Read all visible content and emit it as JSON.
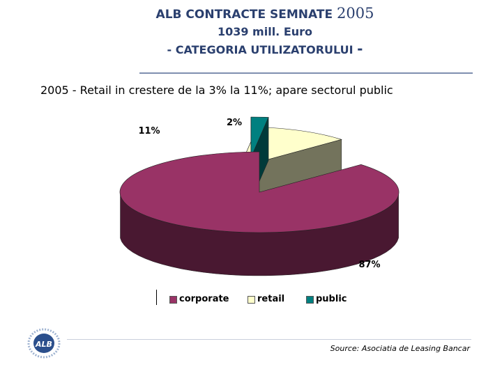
{
  "header": {
    "title_main": "ALB CONTRACTE SEMNATE",
    "title_year": "2005",
    "line2": "1039 mill. Euro",
    "line3": "- CATEGORIA UTILIZATORULUI",
    "line3_dash": "-"
  },
  "subtitle": "2005  - Retail in crestere de la 3% la 11%; apare sectorul public",
  "chart_data": {
    "type": "pie",
    "title": "",
    "categories": [
      "corporate",
      "retail",
      "public"
    ],
    "values": [
      87,
      11,
      2
    ],
    "labels": [
      "87%",
      "11%",
      "2%"
    ],
    "colors": {
      "corporate": "#993366",
      "retail": "#ffffcc",
      "public": "#008080"
    },
    "legend_position": "bottom"
  },
  "legend": {
    "items": [
      {
        "label": "corporate",
        "color": "#993366"
      },
      {
        "label": "retail",
        "color": "#ffffcc"
      },
      {
        "label": "public",
        "color": "#008080"
      }
    ]
  },
  "footer": {
    "source": "Source: Asociatia de Leasing Bancar",
    "logo_text": "ALB"
  }
}
